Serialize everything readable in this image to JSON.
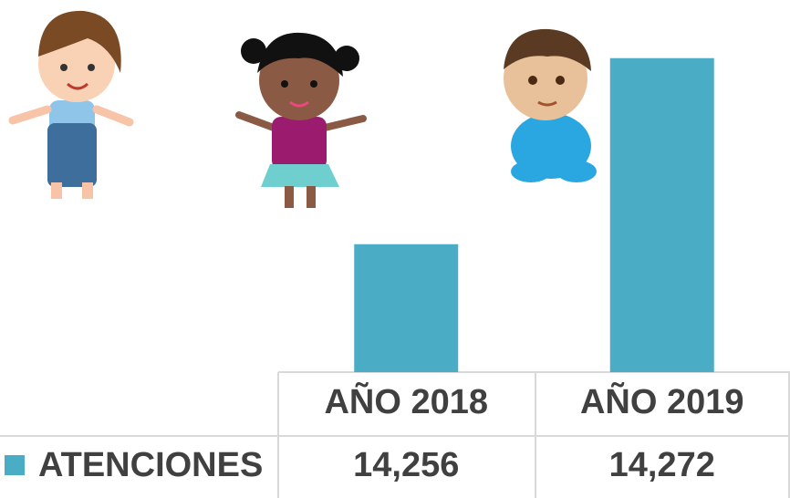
{
  "chart_data": {
    "type": "bar",
    "categories": [
      "AÑO 2018",
      "AÑO 2019"
    ],
    "series": [
      {
        "name": "ATENCIONES",
        "color": "#4bacc6",
        "values": [
          14256,
          14272
        ],
        "value_labels": [
          "14,256",
          "14,272"
        ]
      }
    ],
    "ylim": [
      14245,
      14277
    ]
  }
}
